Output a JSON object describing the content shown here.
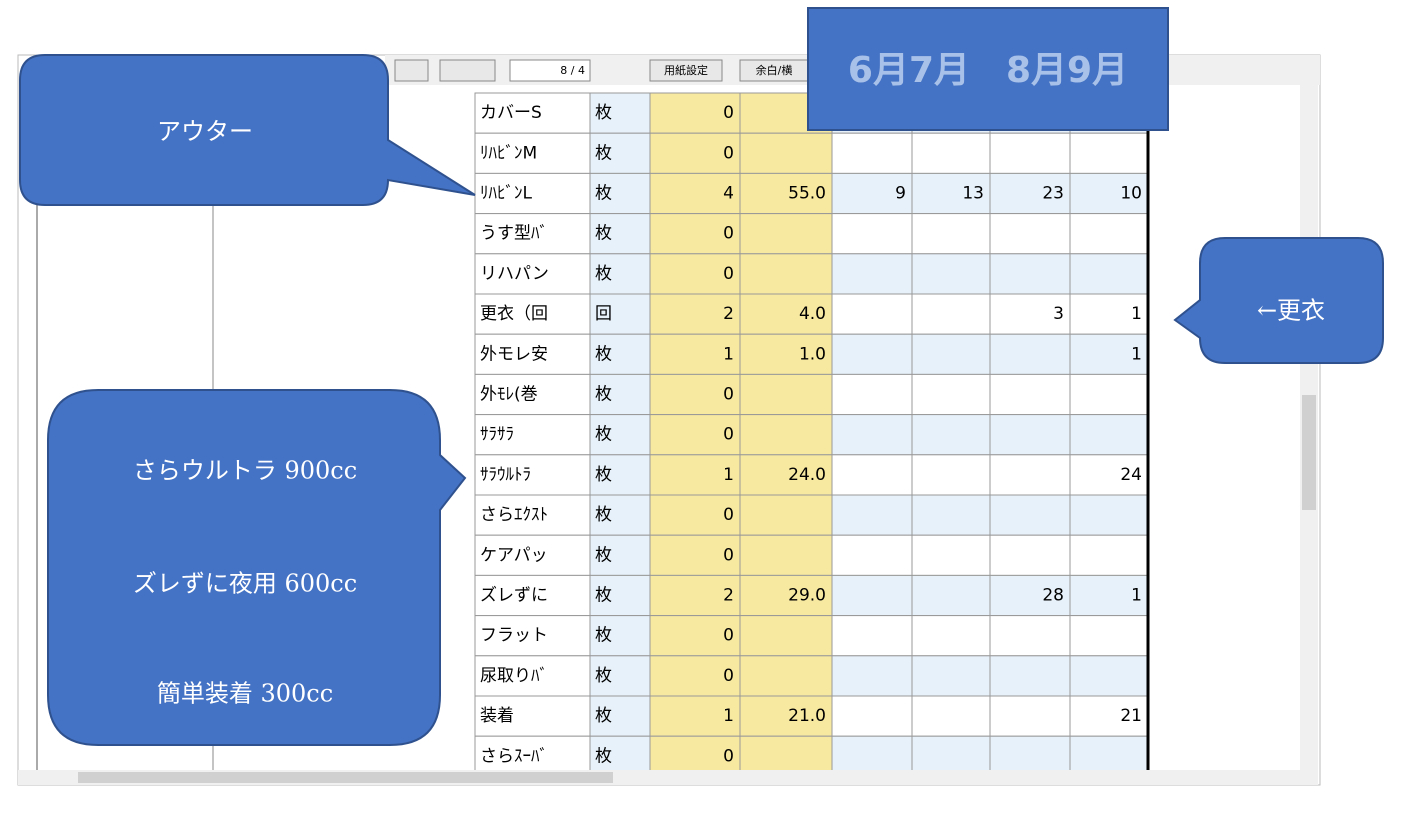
{
  "toolbar": {
    "page": "8 / 4",
    "buttons": [
      "用紙設定",
      "余白/横"
    ]
  },
  "banner": "6月7月　8月9月",
  "table": {
    "rows": [
      [
        "カバーS",
        "枚",
        "0",
        null,
        null,
        null,
        null,
        null
      ],
      [
        "ﾘﾊﾋﾞﾝM",
        "枚",
        "0",
        null,
        null,
        null,
        null,
        null
      ],
      [
        "ﾘﾊﾋﾞﾝL",
        "枚",
        "4",
        "55.0",
        "9",
        "13",
        "23",
        "10"
      ],
      [
        "うす型ﾊﾞ",
        "枚",
        "0",
        null,
        null,
        null,
        null,
        null
      ],
      [
        "リハパン",
        "枚",
        "0",
        null,
        null,
        null,
        null,
        null
      ],
      [
        "更衣（回",
        "回",
        "2",
        "4.0",
        null,
        null,
        "3",
        "1"
      ],
      [
        "外モレ安",
        "枚",
        "1",
        "1.0",
        null,
        null,
        null,
        "1"
      ],
      [
        "外ﾓﾚ(巻",
        "枚",
        "0",
        null,
        null,
        null,
        null,
        null
      ],
      [
        "ｻﾗｻﾗ",
        "枚",
        "0",
        null,
        null,
        null,
        null,
        null
      ],
      [
        "ｻﾗｳﾙﾄﾗ",
        "枚",
        "1",
        "24.0",
        null,
        null,
        null,
        "24"
      ],
      [
        "さらｴｸｽﾄ",
        "枚",
        "0",
        null,
        null,
        null,
        null,
        null
      ],
      [
        "ケアパッ",
        "枚",
        "0",
        null,
        null,
        null,
        null,
        null
      ],
      [
        "ズレずに",
        "枚",
        "2",
        "29.0",
        null,
        null,
        "28",
        "1"
      ],
      [
        "フラット",
        "枚",
        "0",
        null,
        null,
        null,
        null,
        null
      ],
      [
        "尿取りﾊﾞ",
        "枚",
        "0",
        null,
        null,
        null,
        null,
        null
      ],
      [
        "装着",
        "枚",
        "1",
        "21.0",
        null,
        null,
        null,
        "21"
      ],
      [
        "さらｽｰﾊﾞ",
        "枚",
        "0",
        null,
        null,
        null,
        null,
        null
      ]
    ]
  },
  "callouts": {
    "outer": "アウター",
    "change": "←更衣",
    "pads": [
      "さらウルトラ 900cc",
      "ズレずに夜用 600cc",
      "簡単装着 300cc"
    ]
  }
}
